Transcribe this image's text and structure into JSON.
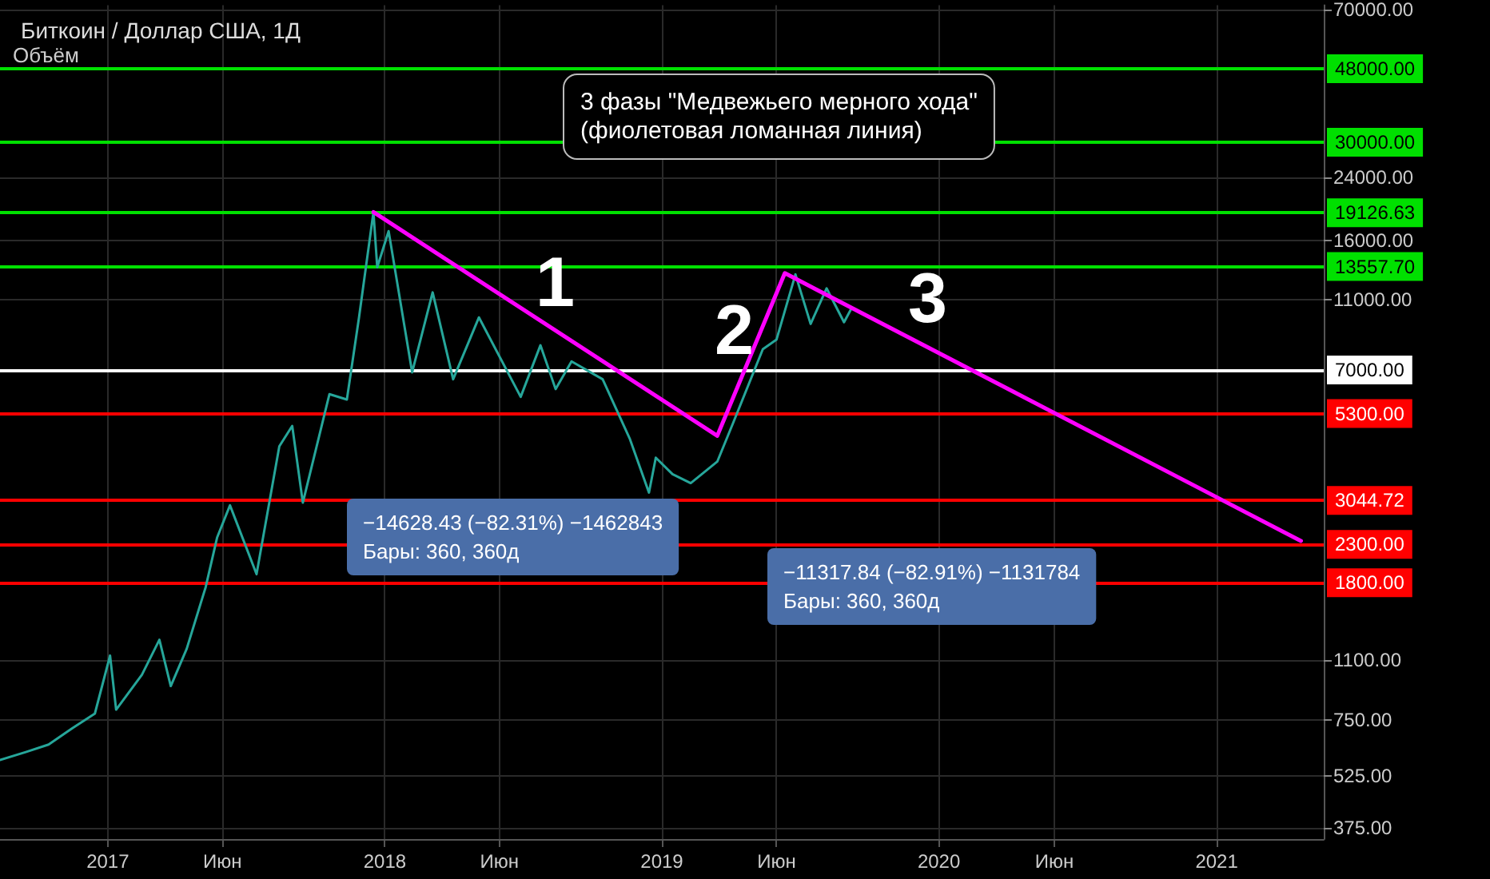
{
  "chart_data": {
    "type": "line",
    "title": "Биткоин / Доллар США, 1Д",
    "subtitle": "Объём",
    "annotations": [
      "3 фазы \"Медвежьего мерного хода\"\n(фиолетовая ломанная линия)",
      "1",
      "2",
      "3",
      "−14628.43 (−82.31%) −1462843\nБары: 360, 360д",
      "−11317.84 (−82.91%) −1131784\nБары: 360, 360д"
    ],
    "x": [
      "2016-08-12",
      "2016-09-15",
      "2016-10-15",
      "2016-11-15",
      "2016-12-15",
      "2017-01-04",
      "2017-01-12",
      "2017-02-15",
      "2017-03-10",
      "2017-03-25",
      "2017-04-15",
      "2017-05-10",
      "2017-05-25",
      "2017-06-11",
      "2017-07-16",
      "2017-08-15",
      "2017-09-01",
      "2017-09-15",
      "2017-10-20",
      "2017-11-12",
      "2017-11-28",
      "2017-12-17",
      "2017-12-22",
      "2018-01-06",
      "2018-02-06",
      "2018-03-05",
      "2018-04-01",
      "2018-05-05",
      "2018-06-29",
      "2018-07-25",
      "2018-08-14",
      "2018-09-04",
      "2018-10-15",
      "2018-11-20",
      "2018-12-15",
      "2018-12-24",
      "2019-01-15",
      "2019-02-08",
      "2019-03-15",
      "2019-04-05",
      "2019-05-14",
      "2019-06-01",
      "2019-06-26",
      "2019-07-16",
      "2019-08-06",
      "2019-08-29",
      "2019-09-08"
    ],
    "series": [
      {
        "color": "#26a69a",
        "values": [
          580,
          610,
          640,
          710,
          780,
          1130,
          800,
          1000,
          1250,
          930,
          1180,
          1750,
          2400,
          2950,
          1900,
          4300,
          4900,
          3000,
          6000,
          5800,
          9800,
          19200,
          13500,
          17000,
          6900,
          11500,
          6600,
          9800,
          5900,
          8200,
          6200,
          7400,
          6600,
          4500,
          3200,
          4000,
          3600,
          3400,
          3900,
          5000,
          8000,
          8500,
          12900,
          9400,
          11800,
          9500,
          10400
        ]
      },
      {
        "color": "#ff00ff",
        "x": [
          "2017-12-17",
          "2019-03-15",
          "2019-06-12",
          "2021-04-22"
        ],
        "values": [
          19200,
          4600,
          13000,
          2350
        ]
      }
    ],
    "xlim": [
      "2016-08-12",
      "2021-05-22"
    ],
    "xticks": [
      {
        "value": "2017-01-01",
        "label": "2017"
      },
      {
        "value": "2017-06-01",
        "label": "Июн"
      },
      {
        "value": "2018-01-01",
        "label": "2018"
      },
      {
        "value": "2018-06-01",
        "label": "Июн"
      },
      {
        "value": "2019-01-01",
        "label": "2019"
      },
      {
        "value": "2019-06-01",
        "label": "Июн"
      },
      {
        "value": "2020-01-01",
        "label": "2020"
      },
      {
        "value": "2020-06-01",
        "label": "Июн"
      },
      {
        "value": "2021-01-01",
        "label": "2021"
      }
    ],
    "ylim": [
      350,
      72000
    ],
    "yticks": [
      {
        "value": 375,
        "label": "375.00"
      },
      {
        "value": 525,
        "label": "525.00"
      },
      {
        "value": 750,
        "label": "750.00"
      },
      {
        "value": 1100,
        "label": "1100.00"
      },
      {
        "value": 11000,
        "label": "11000.00"
      },
      {
        "value": 16000,
        "label": "16000.00"
      },
      {
        "value": 24000,
        "label": "24000.00"
      },
      {
        "value": 70000,
        "label": "70000.00"
      }
    ],
    "log": "y",
    "grid": true,
    "marker": "none",
    "line_style": "solid",
    "ref_lines": [
      {
        "axis": "y",
        "value": 48000,
        "label": "48000.00",
        "color": "#00e000"
      },
      {
        "axis": "y",
        "value": 30000,
        "label": "30000.00",
        "color": "#00e000"
      },
      {
        "axis": "y",
        "value": 19126.63,
        "label": "19126.63",
        "color": "#00e000"
      },
      {
        "axis": "y",
        "value": 13557.7,
        "label": "13557.70",
        "color": "#00e000"
      },
      {
        "axis": "y",
        "value": 7000,
        "label": "7000.00",
        "color": "#ffffff"
      },
      {
        "axis": "y",
        "value": 5300,
        "label": "5300.00",
        "color": "#ff0000"
      },
      {
        "axis": "y",
        "value": 3044.72,
        "label": "3044.72",
        "color": "#ff0000"
      },
      {
        "axis": "y",
        "value": 2300,
        "label": "2300.00",
        "color": "#ff0000"
      },
      {
        "axis": "y",
        "value": 1800,
        "label": "1800.00",
        "color": "#ff0000"
      }
    ]
  }
}
